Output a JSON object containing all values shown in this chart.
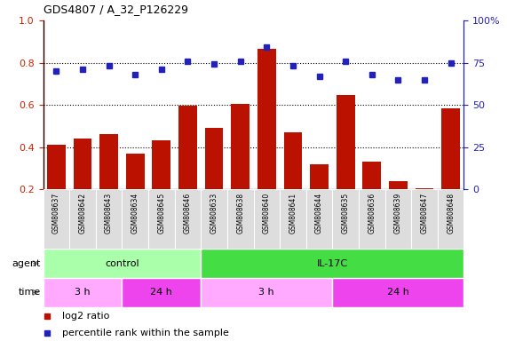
{
  "title": "GDS4807 / A_32_P126229",
  "samples": [
    "GSM808637",
    "GSM808642",
    "GSM808643",
    "GSM808634",
    "GSM808645",
    "GSM808646",
    "GSM808633",
    "GSM808638",
    "GSM808640",
    "GSM808641",
    "GSM808644",
    "GSM808635",
    "GSM808636",
    "GSM808639",
    "GSM808647",
    "GSM808648"
  ],
  "log2_ratio": [
    0.41,
    0.44,
    0.46,
    0.37,
    0.43,
    0.595,
    0.49,
    0.605,
    0.865,
    0.47,
    0.32,
    0.645,
    0.33,
    0.24,
    0.205,
    0.585
  ],
  "percentile": [
    70,
    71,
    73,
    68,
    71,
    76,
    74,
    76,
    84,
    73,
    67,
    76,
    68,
    65,
    65,
    75
  ],
  "bar_color": "#bb1100",
  "dot_color": "#2222bb",
  "ylim_left": [
    0.2,
    1.0
  ],
  "ylim_right": [
    0,
    100
  ],
  "yticks_left": [
    0.2,
    0.4,
    0.6,
    0.8,
    1.0
  ],
  "yticks_right": [
    0,
    25,
    50,
    75,
    100
  ],
  "agent_groups": [
    {
      "label": "control",
      "start": 0,
      "end": 6,
      "color": "#aaffaa"
    },
    {
      "label": "IL-17C",
      "start": 6,
      "end": 16,
      "color": "#44dd44"
    }
  ],
  "time_groups": [
    {
      "label": "3 h",
      "start": 0,
      "end": 3,
      "color": "#ffaaff"
    },
    {
      "label": "24 h",
      "start": 3,
      "end": 6,
      "color": "#ee44ee"
    },
    {
      "label": "3 h",
      "start": 6,
      "end": 11,
      "color": "#ffaaff"
    },
    {
      "label": "24 h",
      "start": 11,
      "end": 16,
      "color": "#ee44ee"
    }
  ],
  "legend_items": [
    {
      "label": "log2 ratio",
      "color": "#bb1100"
    },
    {
      "label": "percentile rank within the sample",
      "color": "#2222bb"
    }
  ],
  "bg_color": "#ffffff",
  "plot_bg": "#ffffff",
  "left_tick_color": "#cc2200",
  "right_tick_color": "#2222bb",
  "bar_bottom": 0.2
}
